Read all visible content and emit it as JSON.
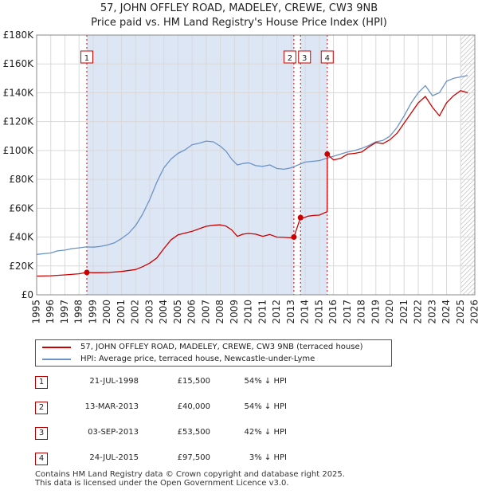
{
  "title_line1": "57, JOHN OFFLEY ROAD, MADELEY, CREWE, CW3 9NB",
  "title_line2": "Price paid vs. HM Land Registry's House Price Index (HPI)",
  "colors": {
    "price_line": "#cc0000",
    "hpi_line": "#6b93c8",
    "shade": "#dde6f5",
    "grid": "#d9d9d9",
    "marker_border": "#cc0000"
  },
  "chart_data": {
    "type": "line",
    "title": "Price paid vs. HM Land Registry's House Price Index (HPI)",
    "xlabel": "",
    "ylabel": "",
    "xlim": [
      1995,
      2026
    ],
    "ylim": [
      0,
      180000
    ],
    "y_ticks": [
      0,
      20000,
      40000,
      60000,
      80000,
      100000,
      120000,
      140000,
      160000,
      180000
    ],
    "y_tick_labels": [
      "£0",
      "£20K",
      "£40K",
      "£60K",
      "£80K",
      "£100K",
      "£120K",
      "£140K",
      "£160K",
      "£180K"
    ],
    "x_ticks": [
      1995,
      1996,
      1997,
      1998,
      1999,
      2000,
      2001,
      2002,
      2003,
      2004,
      2005,
      2006,
      2007,
      2008,
      2009,
      2010,
      2011,
      2012,
      2013,
      2014,
      2015,
      2016,
      2017,
      2018,
      2019,
      2020,
      2021,
      2022,
      2023,
      2024,
      2025,
      2026
    ],
    "x_tick_labels": [
      "1995",
      "1996",
      "1997",
      "1998",
      "1999",
      "2000",
      "2001",
      "2002",
      "2003",
      "2004",
      "2005",
      "2006",
      "2007",
      "2008",
      "2009",
      "2010",
      "2011",
      "2012",
      "2013",
      "2014",
      "2015",
      "2016",
      "2017",
      "2018",
      "2019",
      "2020",
      "2021",
      "2022",
      "2023",
      "2024",
      "2025",
      "2026"
    ],
    "grid": true,
    "shaded_ranges": [
      [
        1998.55,
        2013.2
      ],
      [
        2013.67,
        2015.56
      ]
    ],
    "hatch_from": 2025.0,
    "series": [
      {
        "name": "57, JOHN OFFLEY ROAD, MADELEY, CREWE, CW3 9NB (terraced house)",
        "color": "#cc0000",
        "x": [
          1995.0,
          1996.0,
          1997.0,
          1998.0,
          1998.55,
          1999.0,
          2000.0,
          2001.0,
          2002.0,
          2002.5,
          2003.0,
          2003.5,
          2004.0,
          2004.5,
          2005.0,
          2005.5,
          2006.0,
          2006.5,
          2007.0,
          2007.5,
          2008.0,
          2008.4,
          2008.8,
          2009.2,
          2009.6,
          2010.0,
          2010.5,
          2011.0,
          2011.5,
          2012.0,
          2012.5,
          2013.0,
          2013.19,
          2013.2,
          2013.67,
          2013.8,
          2014.2,
          2014.6,
          2015.0,
          2015.4,
          2015.55,
          2015.56,
          2016.0,
          2016.5,
          2017.0,
          2017.5,
          2018.0,
          2018.5,
          2019.0,
          2019.5,
          2020.0,
          2020.5,
          2021.0,
          2021.5,
          2022.0,
          2022.5,
          2023.0,
          2023.5,
          2024.0,
          2024.5,
          2025.0,
          2025.5
        ],
        "values": [
          13000,
          13200,
          13800,
          14600,
          15500,
          15300,
          15400,
          16200,
          17500,
          19500,
          22000,
          25500,
          32000,
          38000,
          41500,
          42800,
          44000,
          45800,
          47500,
          48200,
          48500,
          47600,
          45000,
          40500,
          42000,
          42500,
          42000,
          40500,
          41800,
          40000,
          39800,
          39500,
          39500,
          40000,
          53500,
          53000,
          54500,
          55000,
          55200,
          57000,
          57500,
          97500,
          93500,
          94500,
          97500,
          98000,
          99000,
          102500,
          105500,
          104800,
          107500,
          112000,
          119000,
          126000,
          133000,
          137500,
          130000,
          124000,
          133000,
          138000,
          141500,
          140000
        ]
      },
      {
        "name": "HPI: Average price, terraced house, Newcastle-under-Lyme",
        "color": "#6b93c8",
        "x": [
          1995.0,
          1995.5,
          1996.0,
          1996.5,
          1997.0,
          1997.5,
          1998.0,
          1998.5,
          1999.0,
          1999.5,
          2000.0,
          2000.5,
          2001.0,
          2001.5,
          2002.0,
          2002.5,
          2003.0,
          2003.5,
          2004.0,
          2004.5,
          2005.0,
          2005.5,
          2006.0,
          2006.5,
          2007.0,
          2007.5,
          2008.0,
          2008.4,
          2008.8,
          2009.2,
          2009.6,
          2010.0,
          2010.5,
          2011.0,
          2011.5,
          2012.0,
          2012.5,
          2013.0,
          2013.5,
          2014.0,
          2014.5,
          2015.0,
          2015.5,
          2016.0,
          2016.5,
          2017.0,
          2017.5,
          2018.0,
          2018.5,
          2019.0,
          2019.5,
          2020.0,
          2020.5,
          2021.0,
          2021.5,
          2022.0,
          2022.5,
          2023.0,
          2023.5,
          2024.0,
          2024.5,
          2025.0,
          2025.5
        ],
        "values": [
          28000,
          28500,
          29000,
          30500,
          31000,
          32000,
          32500,
          33200,
          33000,
          33500,
          34500,
          36000,
          39000,
          42500,
          48000,
          56000,
          66000,
          78000,
          88000,
          94000,
          98000,
          100500,
          104000,
          105000,
          106500,
          106000,
          103000,
          99500,
          94000,
          90000,
          91000,
          91500,
          89500,
          89000,
          90000,
          87500,
          87000,
          88000,
          90000,
          92000,
          92500,
          93000,
          94500,
          96000,
          97500,
          99000,
          100000,
          101500,
          103500,
          106000,
          107000,
          110000,
          116000,
          124000,
          133000,
          140000,
          145000,
          138000,
          140000,
          148000,
          150000,
          151000,
          152000
        ]
      }
    ],
    "sales": [
      {
        "label": "1",
        "x": 1998.55,
        "value": 15500
      },
      {
        "label": "2",
        "x": 2013.2,
        "value": 40000
      },
      {
        "label": "3",
        "x": 2013.67,
        "value": 53500
      },
      {
        "label": "4",
        "x": 2015.56,
        "value": 97500
      }
    ]
  },
  "legend": {
    "items": [
      {
        "label": "57, JOHN OFFLEY ROAD, MADELEY, CREWE, CW3 9NB (terraced house)"
      },
      {
        "label": "HPI: Average price, terraced house, Newcastle-under-Lyme"
      }
    ]
  },
  "table": {
    "rows": [
      {
        "num": "1",
        "date": "21-JUL-1998",
        "price": "£15,500",
        "hpi": "54% ↓ HPI"
      },
      {
        "num": "2",
        "date": "13-MAR-2013",
        "price": "£40,000",
        "hpi": "54% ↓ HPI"
      },
      {
        "num": "3",
        "date": "03-SEP-2013",
        "price": "£53,500",
        "hpi": "42% ↓ HPI"
      },
      {
        "num": "4",
        "date": "24-JUL-2015",
        "price": "£97,500",
        "hpi": "3% ↓ HPI"
      }
    ]
  },
  "footer": {
    "line1": "Contains HM Land Registry data © Crown copyright and database right 2025.",
    "line2": "This data is licensed under the Open Government Licence v3.0."
  }
}
